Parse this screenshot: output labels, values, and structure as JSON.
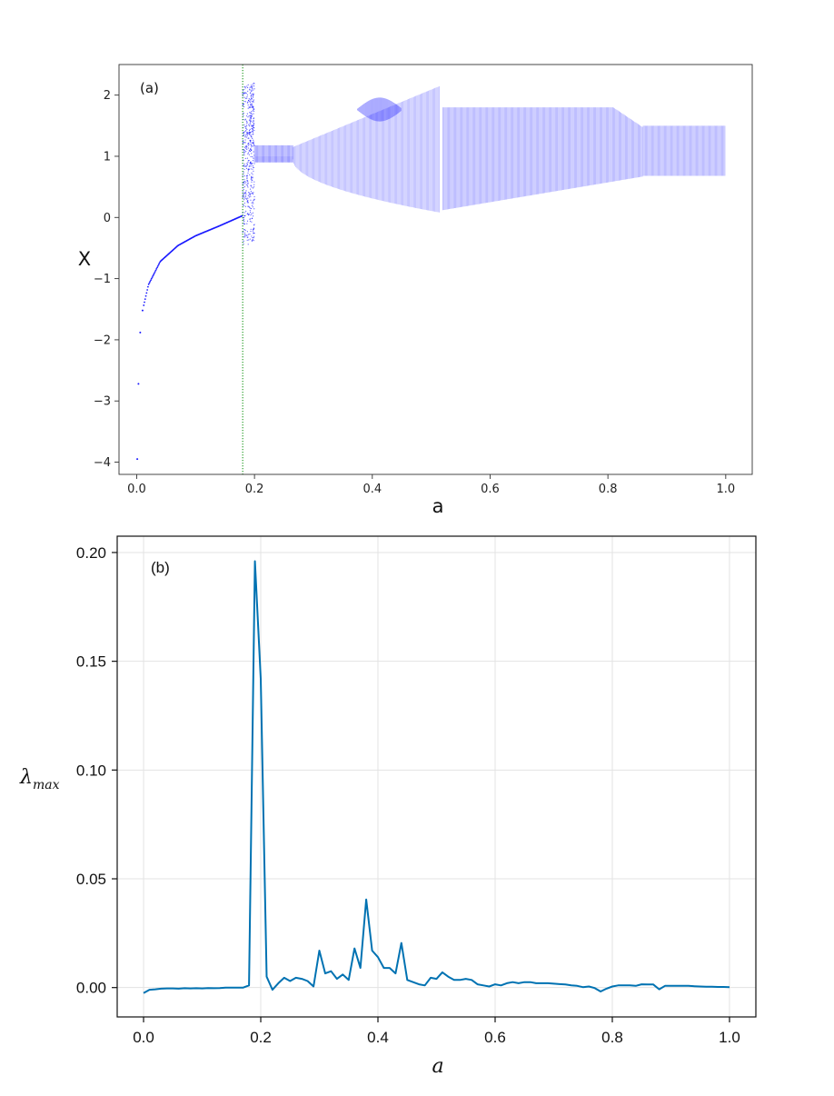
{
  "chart_data": [
    {
      "type": "scatter",
      "panel_label": "(a)",
      "xlabel": "a",
      "ylabel": "X",
      "xlim": [
        -0.03,
        1.045
      ],
      "ylim": [
        -4.2,
        2.5
      ],
      "xticks": [
        0.0,
        0.2,
        0.4,
        0.6,
        0.8,
        1.0
      ],
      "xtick_labels": [
        "0.0",
        "0.2",
        "0.4",
        "0.6",
        "0.8",
        "1.0"
      ],
      "yticks": [
        -4,
        -3,
        -2,
        -1,
        0,
        1,
        2
      ],
      "ytick_labels": [
        "−4",
        "−3",
        "−2",
        "−1",
        "0",
        "1",
        "2"
      ],
      "grid": false,
      "point_color": "#1a1aff",
      "marker_line": {
        "x": 0.18,
        "color": "#2ca02c",
        "style": "dotted"
      },
      "regions": [
        {
          "name": "fixed-point branch",
          "a_range": [
            0.0,
            0.18
          ],
          "x_at": [
            [
              0.001,
              -3.95
            ],
            [
              0.003,
              -2.72
            ],
            [
              0.006,
              -1.88
            ],
            [
              0.01,
              -1.52
            ],
            [
              0.02,
              -1.1
            ],
            [
              0.04,
              -0.72
            ],
            [
              0.07,
              -0.46
            ],
            [
              0.1,
              -0.3
            ],
            [
              0.14,
              -0.14
            ],
            [
              0.18,
              0.03
            ]
          ]
        },
        {
          "name": "chaotic window",
          "a_range": [
            0.18,
            0.2
          ],
          "x_range": [
            -0.45,
            2.2
          ]
        },
        {
          "name": "period-2 band",
          "a_range": [
            0.2,
            0.265
          ],
          "upper": [
            1.0,
            1.2
          ],
          "lower": [
            0.9,
            1.0
          ]
        },
        {
          "name": "expanding band",
          "a_range": [
            0.265,
            0.515
          ],
          "upper_edge_end": 2.15,
          "lower_edge_end": 0.08
        },
        {
          "name": "island",
          "a_range": [
            0.375,
            0.45
          ],
          "x_range": [
            1.6,
            1.95
          ]
        },
        {
          "name": "wide band",
          "a_range": [
            0.52,
            0.86
          ],
          "upper": 1.8,
          "lower": 0.25
        },
        {
          "name": "final band",
          "a_range": [
            0.86,
            1.0
          ],
          "upper": 1.5,
          "lower": 0.68
        }
      ]
    },
    {
      "type": "line",
      "panel_label": "(b)",
      "xlabel": "a",
      "ylabel": "λ",
      "ylabel_sub": "max",
      "xlim": [
        -0.045,
        1.045
      ],
      "ylim": [
        -0.0135,
        0.2075
      ],
      "xticks": [
        0.0,
        0.2,
        0.4,
        0.6,
        0.8,
        1.0
      ],
      "xtick_labels": [
        "0.0",
        "0.2",
        "0.4",
        "0.6",
        "0.8",
        "1.0"
      ],
      "yticks": [
        0.0,
        0.05,
        0.1,
        0.15,
        0.2
      ],
      "ytick_labels": [
        "0.00",
        "0.05",
        "0.10",
        "0.15",
        "0.20"
      ],
      "grid": true,
      "line_color": "#0072b2",
      "x": [
        0.0,
        0.01,
        0.02,
        0.03,
        0.04,
        0.05,
        0.06,
        0.07,
        0.08,
        0.09,
        0.1,
        0.11,
        0.12,
        0.13,
        0.14,
        0.15,
        0.16,
        0.17,
        0.18,
        0.19,
        0.2,
        0.21,
        0.22,
        0.23,
        0.24,
        0.25,
        0.26,
        0.27,
        0.28,
        0.29,
        0.3,
        0.31,
        0.32,
        0.33,
        0.34,
        0.35,
        0.36,
        0.37,
        0.38,
        0.39,
        0.4,
        0.41,
        0.42,
        0.43,
        0.44,
        0.45,
        0.46,
        0.47,
        0.48,
        0.49,
        0.5,
        0.51,
        0.52,
        0.53,
        0.54,
        0.55,
        0.56,
        0.57,
        0.58,
        0.59,
        0.6,
        0.61,
        0.62,
        0.63,
        0.64,
        0.65,
        0.66,
        0.67,
        0.68,
        0.69,
        0.7,
        0.71,
        0.72,
        0.73,
        0.74,
        0.75,
        0.76,
        0.77,
        0.78,
        0.79,
        0.8,
        0.81,
        0.82,
        0.83,
        0.84,
        0.85,
        0.86,
        0.87,
        0.88,
        0.89,
        0.9,
        0.91,
        0.92,
        0.93,
        0.94,
        0.95,
        0.96,
        0.97,
        0.98,
        0.99,
        1.0
      ],
      "y": [
        -0.0025,
        -0.001,
        -0.0008,
        -0.0005,
        -0.0004,
        -0.0004,
        -0.0005,
        -0.0003,
        -0.0004,
        -0.0003,
        -0.0004,
        -0.0002,
        -0.0003,
        -0.0002,
        0.0,
        0.0,
        0.0,
        0.0,
        0.001,
        0.196,
        0.142,
        0.005,
        -0.001,
        0.002,
        0.0045,
        0.003,
        0.0045,
        0.004,
        0.003,
        0.0005,
        0.017,
        0.0065,
        0.0075,
        0.004,
        0.006,
        0.0035,
        0.018,
        0.009,
        0.0405,
        0.017,
        0.014,
        0.009,
        0.009,
        0.0065,
        0.0205,
        0.0035,
        0.0025,
        0.0015,
        0.001,
        0.0045,
        0.004,
        0.007,
        0.005,
        0.0035,
        0.0035,
        0.004,
        0.0035,
        0.0015,
        0.001,
        0.0005,
        0.0015,
        0.001,
        0.002,
        0.0025,
        0.002,
        0.0025,
        0.0025,
        0.002,
        0.002,
        0.002,
        0.0018,
        0.0016,
        0.0014,
        0.001,
        0.0008,
        0.0002,
        0.0005,
        -0.0002,
        -0.0018,
        -0.0005,
        0.0005,
        0.001,
        0.001,
        0.001,
        0.0008,
        0.0015,
        0.0014,
        0.0014,
        -0.0008,
        0.0008,
        0.0008,
        0.0008,
        0.0008,
        0.0008,
        0.0006,
        0.0005,
        0.0004,
        0.0004,
        0.0003,
        0.0003,
        0.0002
      ]
    }
  ]
}
